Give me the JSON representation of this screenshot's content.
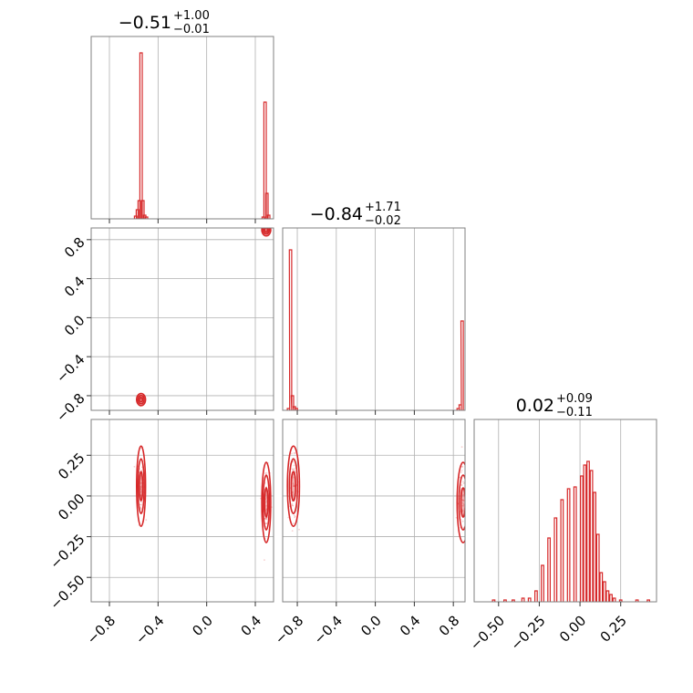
{
  "chart_data": {
    "type": "corner",
    "color": "#d62728",
    "parameters": [
      {
        "title_value": "−0.51",
        "title_plus": "+1.00",
        "title_minus": "−0.01",
        "range": [
          -0.95,
          0.55
        ],
        "ticks": [
          -0.8,
          -0.4,
          0.0,
          0.4
        ],
        "ticklabels": [
          "−0.8",
          "−0.4",
          "0.0",
          "0.4"
        ],
        "hist_bins": [
          [
            -0.585,
            0.015
          ],
          [
            -0.57,
            0.05
          ],
          [
            -0.555,
            0.1
          ],
          [
            -0.54,
            0.91
          ],
          [
            -0.525,
            0.1
          ],
          [
            -0.51,
            0.02
          ],
          [
            -0.495,
            0.01
          ],
          [
            0.465,
            0.01
          ],
          [
            0.48,
            0.64
          ],
          [
            0.495,
            0.14
          ],
          [
            0.51,
            0.02
          ]
        ]
      },
      {
        "title_value": "−0.84",
        "title_plus": "+1.71",
        "title_minus": "−0.02",
        "range": [
          -0.95,
          0.92
        ],
        "ticks": [
          -0.8,
          -0.4,
          0.0,
          0.4,
          0.8
        ],
        "ticklabels": [
          "−0.8",
          "−0.4",
          "0.0",
          "0.4",
          "0.8"
        ],
        "hist_bins": [
          [
            -0.89,
            0.01
          ],
          [
            -0.87,
            0.88
          ],
          [
            -0.85,
            0.08
          ],
          [
            -0.83,
            0.02
          ],
          [
            -0.81,
            0.01
          ],
          [
            0.85,
            0.01
          ],
          [
            0.87,
            0.03
          ],
          [
            0.89,
            0.49
          ]
        ]
      },
      {
        "title_value": "0.02",
        "title_plus": "+0.09",
        "title_minus": "−0.11",
        "range": [
          -0.65,
          0.47
        ],
        "ticks": [
          -0.5,
          -0.25,
          0.0,
          0.25
        ],
        "ticklabels": [
          "−0.50",
          "−0.25",
          "0.00",
          "0.25"
        ],
        "hist_bins": [
          [
            -0.53,
            0.01
          ],
          [
            -0.46,
            0.01
          ],
          [
            -0.41,
            0.01
          ],
          [
            -0.35,
            0.02
          ],
          [
            -0.31,
            0.02
          ],
          [
            -0.27,
            0.06
          ],
          [
            -0.23,
            0.2
          ],
          [
            -0.19,
            0.35
          ],
          [
            -0.15,
            0.46
          ],
          [
            -0.11,
            0.56
          ],
          [
            -0.07,
            0.62
          ],
          [
            -0.03,
            0.63
          ],
          [
            0.01,
            0.69
          ],
          [
            0.03,
            0.75
          ],
          [
            0.05,
            0.77
          ],
          [
            0.07,
            0.72
          ],
          [
            0.09,
            0.6
          ],
          [
            0.11,
            0.37
          ],
          [
            0.13,
            0.16
          ],
          [
            0.15,
            0.11
          ],
          [
            0.17,
            0.06
          ],
          [
            0.19,
            0.04
          ],
          [
            0.21,
            0.02
          ],
          [
            0.25,
            0.01
          ],
          [
            0.35,
            0.01
          ],
          [
            0.42,
            0.01
          ]
        ]
      }
    ],
    "clusters": [
      {
        "p1": -0.54,
        "p2": -0.84,
        "p3": 0.06
      },
      {
        "p1": 0.49,
        "p2": 0.9,
        "p3": -0.04
      }
    ],
    "grid": true
  }
}
